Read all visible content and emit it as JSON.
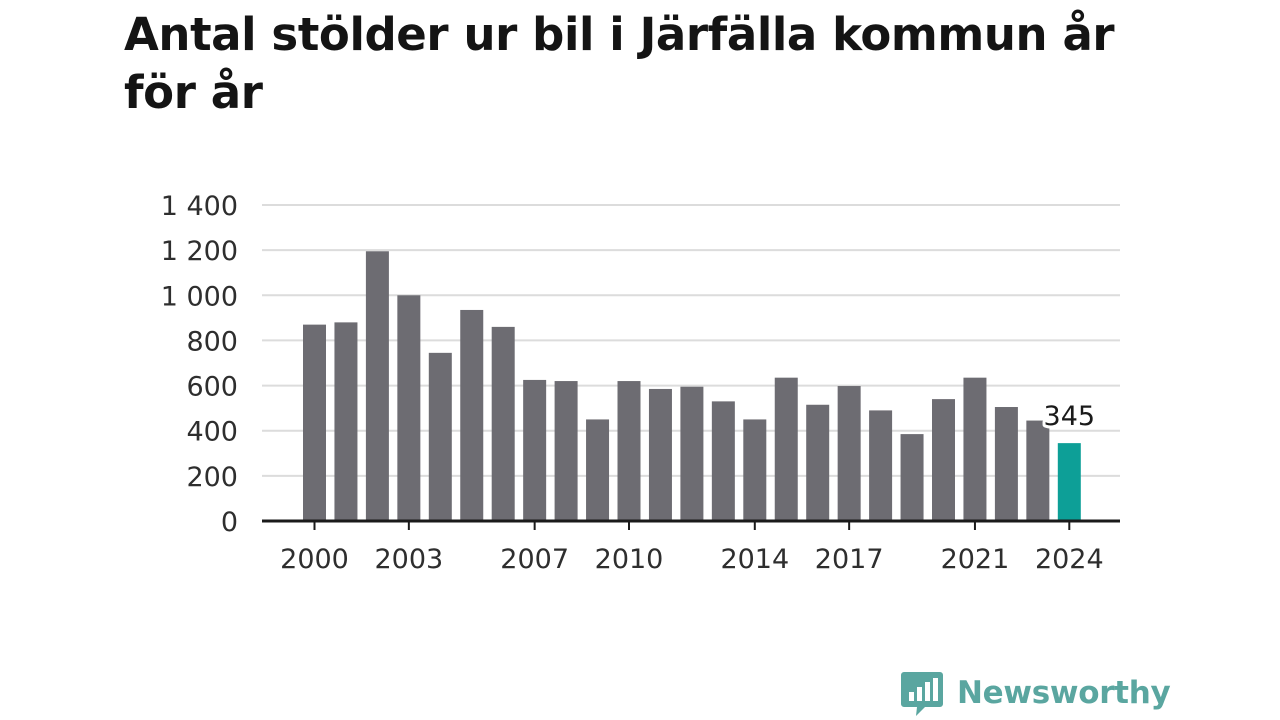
{
  "title": "Antal stölder ur bil i Järfälla kommun år för år",
  "brand": {
    "name": "Newsworthy",
    "color": "#5aa6a0"
  },
  "colors": {
    "bar": "#6d6c72",
    "highlight": "#0d9f97",
    "grid": "#dcdcdc",
    "axis": "#1a1a1a"
  },
  "chart_data": {
    "type": "bar",
    "title": "Antal stölder ur bil i Järfälla kommun år för år",
    "xlabel": "",
    "ylabel": "",
    "ylim": [
      0,
      1400
    ],
    "grid": true,
    "y_ticks": [
      0,
      200,
      400,
      600,
      800,
      1000,
      1200,
      1400
    ],
    "y_tick_labels": [
      "0",
      "200",
      "400",
      "600",
      "800",
      "1 000",
      "1 200",
      "1 400"
    ],
    "x_tick_labels": [
      "2000",
      "2003",
      "2007",
      "2010",
      "2014",
      "2017",
      "2021",
      "2024"
    ],
    "categories": [
      "2000",
      "2001",
      "2002",
      "2003",
      "2004",
      "2005",
      "2006",
      "2007",
      "2008",
      "2009",
      "2010",
      "2011",
      "2012",
      "2013",
      "2014",
      "2015",
      "2016",
      "2017",
      "2018",
      "2019",
      "2020",
      "2021",
      "2022",
      "2023",
      "2024"
    ],
    "values": [
      870,
      880,
      1195,
      1000,
      745,
      935,
      860,
      625,
      620,
      450,
      620,
      585,
      595,
      530,
      450,
      635,
      515,
      598,
      490,
      385,
      540,
      635,
      505,
      445,
      345
    ],
    "highlight": {
      "category": "2024",
      "label": "345"
    }
  }
}
